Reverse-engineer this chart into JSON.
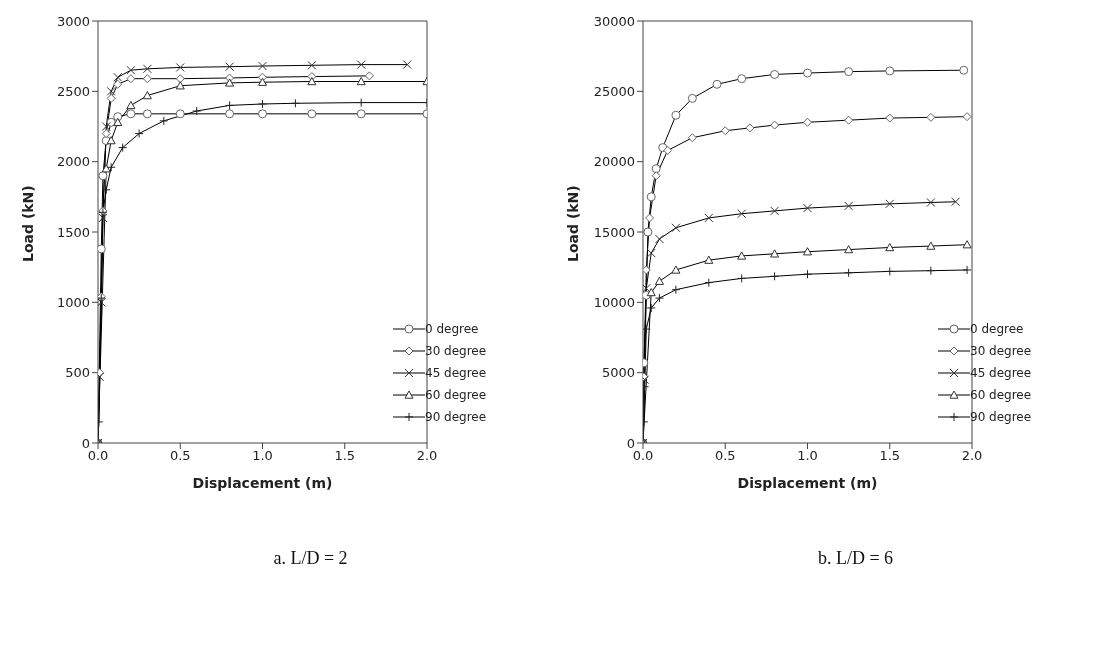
{
  "chart_data": [
    {
      "type": "line",
      "xlabel": "Displacement (m)",
      "ylabel": "Load (kN)",
      "xlim": [
        0,
        2
      ],
      "ylim": [
        0,
        3000
      ],
      "xticks": [
        {
          "value": 0,
          "label": "0.0"
        },
        {
          "value": 0.5,
          "label": "0.5"
        },
        {
          "value": 1,
          "label": "1.0"
        },
        {
          "value": 1.5,
          "label": "1.5"
        },
        {
          "value": 2,
          "label": "2.0"
        }
      ],
      "yticks": [
        0,
        500,
        1000,
        1500,
        2000,
        2500,
        3000
      ],
      "legend": "bottom right",
      "line_style": "solid",
      "annotations": [
        "a. L/D = 2"
      ],
      "series": [
        {
          "name": "0 degree",
          "color": "#000000",
          "marker": "circle",
          "x": [
            0,
            0.02,
            0.03,
            0.05,
            0.08,
            0.12,
            0.2,
            0.3,
            0.5,
            0.8,
            1.0,
            1.3,
            1.6,
            2.0
          ],
          "values": [
            0,
            1380,
            1900,
            2150,
            2280,
            2320,
            2340,
            2340,
            2340,
            2340,
            2340,
            2340,
            2340,
            2340
          ]
        },
        {
          "name": "30 degree",
          "color": "#000000",
          "marker": "diamond",
          "x": [
            0,
            0.01,
            0.02,
            0.03,
            0.05,
            0.08,
            0.12,
            0.2,
            0.3,
            0.5,
            0.8,
            1.0,
            1.3,
            1.65
          ],
          "values": [
            0,
            500,
            1040,
            1650,
            2200,
            2450,
            2550,
            2590,
            2590,
            2590,
            2595,
            2600,
            2605,
            2610
          ]
        },
        {
          "name": "45 degree",
          "color": "#000000",
          "marker": "cross",
          "x": [
            0,
            0.01,
            0.02,
            0.03,
            0.05,
            0.08,
            0.12,
            0.2,
            0.3,
            0.5,
            0.8,
            1.0,
            1.3,
            1.6,
            1.88
          ],
          "values": [
            0,
            470,
            1000,
            1600,
            2250,
            2500,
            2600,
            2650,
            2660,
            2670,
            2675,
            2680,
            2685,
            2690,
            2690
          ]
        },
        {
          "name": "60 degree",
          "color": "#000000",
          "marker": "triangle",
          "x": [
            0,
            0.05,
            0.08,
            0.12,
            0.2,
            0.3,
            0.5,
            0.8,
            1.0,
            1.3,
            1.6,
            2.0
          ],
          "values": [
            0,
            1950,
            2150,
            2280,
            2400,
            2470,
            2540,
            2560,
            2565,
            2570,
            2570,
            2570
          ]
        },
        {
          "name": "90 degree",
          "color": "#000000",
          "marker": "plus",
          "x": [
            0,
            0.005,
            0.02,
            0.03,
            0.05,
            0.08,
            0.15,
            0.25,
            0.4,
            0.6,
            0.8,
            1.0,
            1.2,
            1.6,
            2.0
          ],
          "values": [
            0,
            150,
            1030,
            1640,
            1800,
            1960,
            2100,
            2200,
            2290,
            2360,
            2400,
            2410,
            2415,
            2420,
            2420
          ]
        }
      ]
    },
    {
      "type": "line",
      "xlabel": "Displacement (m)",
      "ylabel": "Load (kN)",
      "xlim": [
        0,
        2
      ],
      "ylim": [
        0,
        30000
      ],
      "xticks": [
        {
          "value": 0,
          "label": "0.0"
        },
        {
          "value": 0.5,
          "label": "0.5"
        },
        {
          "value": 1,
          "label": "1.0"
        },
        {
          "value": 1.5,
          "label": "1.5"
        },
        {
          "value": 2,
          "label": "2.0"
        }
      ],
      "yticks": [
        0,
        5000,
        10000,
        15000,
        20000,
        25000,
        30000
      ],
      "legend": "bottom right",
      "line_style": "solid",
      "annotations": [
        "b. L/D = 6"
      ],
      "series": [
        {
          "name": "0 degree",
          "color": "#000000",
          "marker": "circle",
          "x": [
            0,
            0.005,
            0.02,
            0.03,
            0.05,
            0.08,
            0.12,
            0.2,
            0.3,
            0.45,
            0.6,
            0.8,
            1.0,
            1.25,
            1.5,
            1.95
          ],
          "values": [
            0,
            5700,
            10500,
            15000,
            17500,
            19500,
            21000,
            23300,
            24500,
            25500,
            25900,
            26200,
            26300,
            26400,
            26450,
            26500
          ]
        },
        {
          "name": "30 degree",
          "color": "#000000",
          "marker": "diamond",
          "x": [
            0,
            0.005,
            0.02,
            0.04,
            0.08,
            0.15,
            0.3,
            0.5,
            0.65,
            0.8,
            1.0,
            1.25,
            1.5,
            1.75,
            1.97
          ],
          "values": [
            0,
            4700,
            12300,
            16000,
            19000,
            20800,
            21700,
            22200,
            22400,
            22600,
            22800,
            22950,
            23100,
            23150,
            23200
          ]
        },
        {
          "name": "45 degree",
          "color": "#000000",
          "marker": "cross",
          "x": [
            0,
            0.01,
            0.02,
            0.05,
            0.1,
            0.2,
            0.4,
            0.6,
            0.8,
            1.0,
            1.25,
            1.5,
            1.75,
            1.9
          ],
          "values": [
            0,
            4500,
            11000,
            13500,
            14500,
            15300,
            16000,
            16300,
            16500,
            16700,
            16850,
            17000,
            17100,
            17150
          ]
        },
        {
          "name": "60 degree",
          "color": "#000000",
          "marker": "triangle",
          "x": [
            0,
            0.05,
            0.1,
            0.2,
            0.4,
            0.6,
            0.8,
            1.0,
            1.25,
            1.5,
            1.75,
            1.97
          ],
          "values": [
            0,
            10700,
            11500,
            12300,
            13000,
            13300,
            13450,
            13600,
            13750,
            13900,
            14000,
            14100
          ]
        },
        {
          "name": "90 degree",
          "color": "#000000",
          "marker": "plus",
          "x": [
            0,
            0.005,
            0.01,
            0.02,
            0.05,
            0.1,
            0.2,
            0.4,
            0.6,
            0.8,
            1.0,
            1.25,
            1.5,
            1.75,
            1.97
          ],
          "values": [
            0,
            1500,
            4000,
            8100,
            9600,
            10300,
            10900,
            11400,
            11700,
            11850,
            12000,
            12100,
            12200,
            12250,
            12300
          ]
        }
      ]
    }
  ]
}
